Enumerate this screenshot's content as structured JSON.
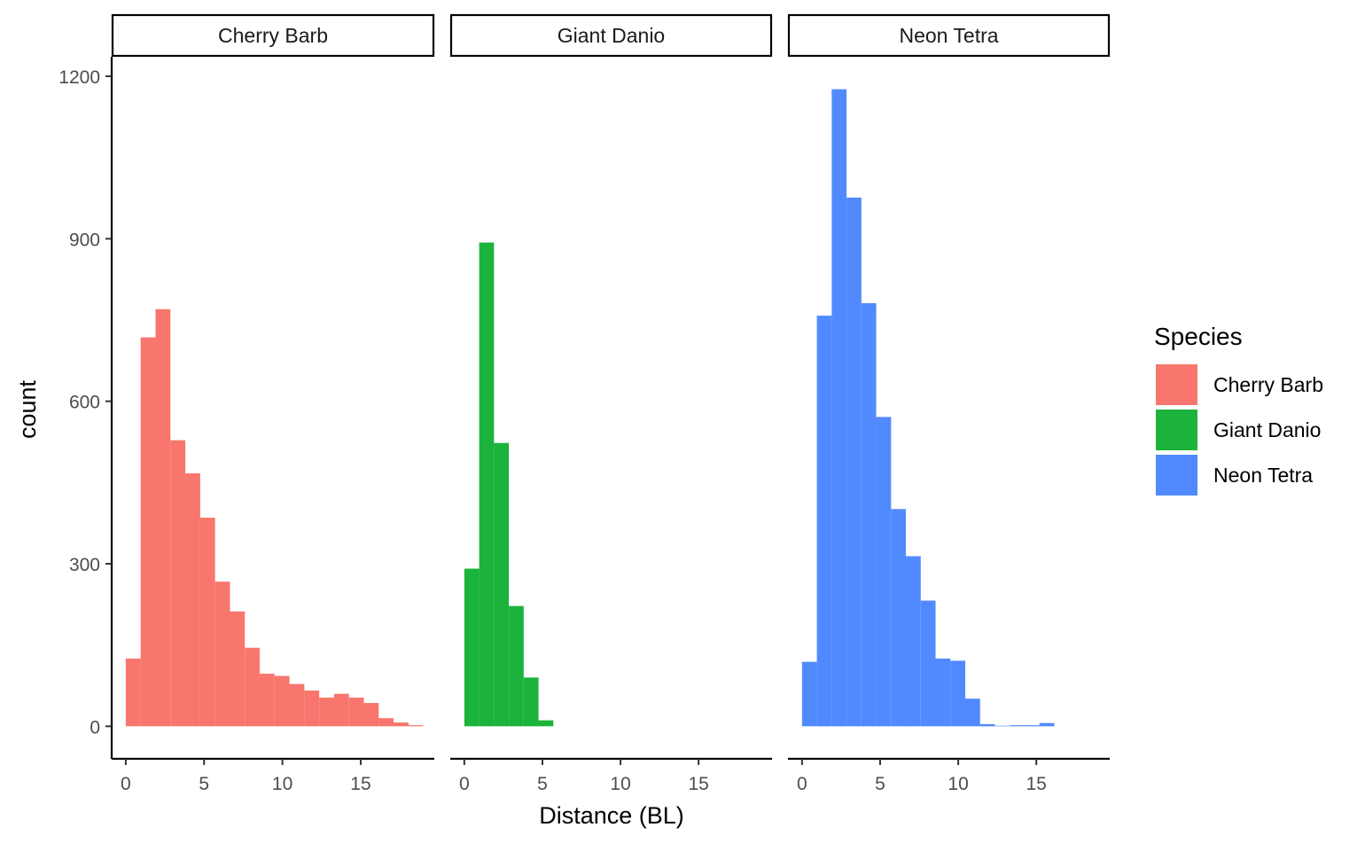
{
  "chart_data": {
    "type": "bar",
    "subtype": "faceted-histogram",
    "xlabel": "Distance (BL)",
    "ylabel": "count",
    "ylim": [
      -60,
      1236
    ],
    "xlim": [
      -0.9,
      19.7
    ],
    "yticks": [
      0,
      300,
      600,
      900,
      1200
    ],
    "xticks": [
      0,
      5,
      10,
      15
    ],
    "bin_width": 0.95,
    "grid": false,
    "legend": {
      "title": "Species",
      "position": "right",
      "entries": [
        {
          "name": "Cherry Barb",
          "color": "#f8766d"
        },
        {
          "name": "Giant Danio",
          "color": "#1bb33c"
        },
        {
          "name": "Neon Tetra",
          "color": "#518aff"
        }
      ]
    },
    "facets": [
      {
        "name": "Cherry Barb",
        "color": "#f8766d",
        "bin_starts": [
          0,
          0.95,
          1.9,
          2.85,
          3.8,
          4.75,
          5.7,
          6.65,
          7.6,
          8.55,
          9.5,
          10.45,
          11.4,
          12.35,
          13.3,
          14.25,
          15.2,
          16.15,
          17.1,
          18.05
        ],
        "counts": [
          125,
          718,
          770,
          528,
          467,
          385,
          267,
          212,
          145,
          97,
          93,
          78,
          66,
          53,
          60,
          53,
          43,
          15,
          7,
          2
        ]
      },
      {
        "name": "Giant Danio",
        "color": "#1bb33c",
        "bin_starts": [
          0,
          0.95,
          1.9,
          2.85,
          3.8,
          4.75
        ],
        "counts": [
          291,
          893,
          523,
          222,
          90,
          11
        ]
      },
      {
        "name": "Neon Tetra",
        "color": "#518aff",
        "bin_starts": [
          0,
          0.95,
          1.9,
          2.85,
          3.8,
          4.75,
          5.7,
          6.65,
          7.6,
          8.55,
          9.5,
          10.45,
          11.4,
          12.35,
          13.3,
          14.25,
          15.2
        ],
        "counts": [
          119,
          758,
          1176,
          976,
          781,
          571,
          401,
          314,
          232,
          125,
          121,
          51,
          4,
          1,
          2,
          2,
          6
        ]
      }
    ]
  }
}
